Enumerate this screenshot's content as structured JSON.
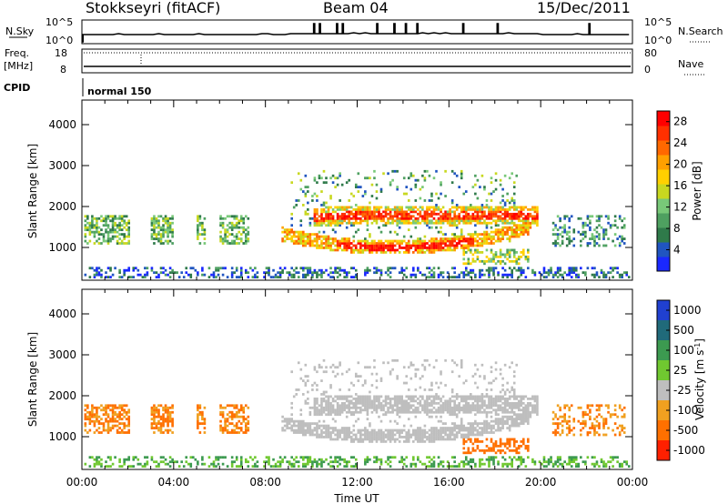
{
  "header": {
    "station": "Stokkseyri (fitACF)",
    "beam": "Beam 04",
    "date": "15/Dec/2011"
  },
  "strip_panels": {
    "nsky": {
      "label": "N.Sky",
      "left_ticks": [
        "10^5",
        "10^0"
      ],
      "right_ticks": [
        "10^5",
        "10^0"
      ],
      "right_label": "N.Search",
      "right_legend_line": "dotted"
    },
    "freq": {
      "label_line1": "Freq.",
      "label_line2": "[MHz]",
      "left_ticks": [
        "18",
        "8"
      ],
      "right_ticks": [
        "80",
        "0"
      ],
      "right_label": "Nave",
      "right_legend_line": "dotted"
    },
    "cpid": {
      "label": "CPID",
      "value": "normal 150"
    }
  },
  "chart_data": [
    {
      "type": "heatmap",
      "parameter": "Power",
      "ylabel": "Slant Range [km]",
      "xlabel": "",
      "y_ticks": [
        "1000",
        "2000",
        "3000",
        "4000"
      ],
      "ylim": [
        200,
        4600
      ],
      "x_ticks": [
        "00:00",
        "04:00",
        "08:00",
        "12:00",
        "16:00",
        "20:00",
        "00:00"
      ],
      "xlim_hours": [
        0,
        24
      ],
      "colorbar": {
        "label": "Power [dB]",
        "ticks": [
          "4",
          "8",
          "12",
          "16",
          "20",
          "24",
          "28"
        ],
        "range": [
          0,
          30
        ],
        "colors": [
          "#1a28ff",
          "#2055c0",
          "#2f7a4a",
          "#4ea060",
          "#78c878",
          "#c8d820",
          "#ffd000",
          "#ffa000",
          "#ff6800",
          "#ff3000",
          "#ff0000"
        ]
      }
    },
    {
      "type": "heatmap",
      "parameter": "Velocity",
      "ylabel": "Slant Range [km]",
      "xlabel": "Time UT",
      "y_ticks": [
        "1000",
        "2000",
        "3000",
        "4000"
      ],
      "ylim": [
        200,
        4600
      ],
      "x_ticks": [
        "00:00",
        "04:00",
        "08:00",
        "12:00",
        "16:00",
        "20:00",
        "00:00"
      ],
      "xlim_hours": [
        0,
        24
      ],
      "colorbar": {
        "label": "Velocity  [m s",
        "label_sup": "-1",
        "label_end": "]",
        "ticks": [
          "1000",
          "500",
          "100",
          "25",
          "-25",
          "-100",
          "-500",
          "-1000"
        ],
        "colors": [
          "#2040d0",
          "#206a7a",
          "#3c9a50",
          "#70c830",
          "#bebebe",
          "#f0a020",
          "#ff7000",
          "#ff2000"
        ]
      }
    }
  ]
}
